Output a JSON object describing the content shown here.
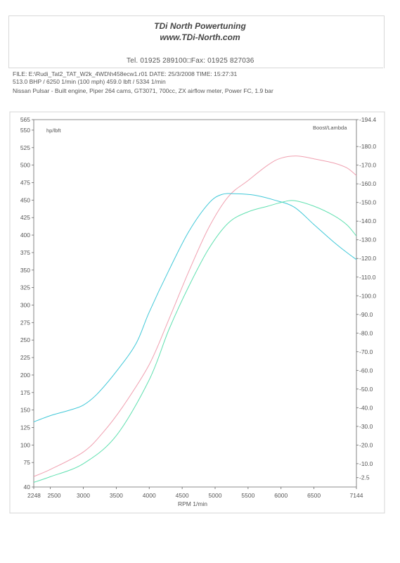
{
  "header": {
    "company": "TDi North Powertuning",
    "website": "www.TDi-North.com",
    "phone": "Tel. 01925 289100□Fax: 01925 827036"
  },
  "run_info": {
    "line1": "FILE: E:\\Rudi_Tat2_TAT_W2k_4WD\\h458ecw1.r01  DATE: 25/3/2008  TIME: 15:27:31",
    "line2": "513.0 BHP / 6250 1/min (100 mph)    459.0 lbft / 5334 1/min",
    "line3": "Nissan Pulsar - Built engine, Piper 264 cams, GT3071, 700cc, ZX airflow meter, Power FC, 1.9 bar"
  },
  "chart_data": {
    "type": "line",
    "xlabel": "RPM  1/min",
    "left_axis_label": "hp/lbft",
    "right_axis_label": "Boost/Lambda",
    "xlim": [
      2248,
      7144
    ],
    "x_ticks": [
      "2248",
      "2500",
      "3000",
      "3500",
      "4000",
      "4500",
      "5000",
      "5500",
      "6000",
      "6500",
      "7144"
    ],
    "ylim_left": [
      40,
      565
    ],
    "y_left_ticks": [
      "565",
      "550",
      "525",
      "500",
      "475",
      "450",
      "425",
      "400",
      "375",
      "350",
      "325",
      "300",
      "275",
      "250",
      "225",
      "200",
      "175",
      "150",
      "125",
      "100",
      "75",
      "40"
    ],
    "ylim_right": [
      -2.5,
      194.4
    ],
    "y_right_ticks": [
      "194.4",
      "180.0",
      "170.0",
      "160.0",
      "150.0",
      "140.0",
      "130.0",
      "120.0",
      "110.0",
      "100.0",
      "90.0",
      "80.0",
      "70.0",
      "60.0",
      "50.0",
      "40.0",
      "30.0",
      "20.0",
      "10.0",
      "2.5"
    ],
    "series": [
      {
        "axis": "left",
        "color": "#f0a0b0",
        "x": [
          2248,
          2500,
          3000,
          3300,
          3600,
          4000,
          4300,
          4600,
          4900,
          5200,
          5500,
          5800,
          6000,
          6250,
          6500,
          6800,
          7000,
          7144
        ],
        "y": [
          55,
          65,
          90,
          118,
          155,
          215,
          280,
          348,
          410,
          455,
          478,
          500,
          510,
          513,
          509,
          503,
          496,
          485
        ]
      },
      {
        "axis": "left",
        "color": "#40c8d8",
        "x": [
          2248,
          2500,
          2800,
          3000,
          3200,
          3500,
          3800,
          4000,
          4300,
          4600,
          4900,
          5100,
          5334,
          5600,
          5900,
          6200,
          6500,
          6800,
          7000,
          7144
        ],
        "y": [
          133,
          142,
          150,
          157,
          172,
          205,
          245,
          290,
          350,
          405,
          445,
          458,
          459,
          457,
          450,
          440,
          415,
          390,
          375,
          365
        ]
      },
      {
        "axis": "right",
        "color": "#60e0b0",
        "x": [
          2248,
          2500,
          3000,
          3500,
          4000,
          4300,
          4600,
          4900,
          5200,
          5500,
          5800,
          6000,
          6200,
          6500,
          6800,
          7000,
          7144
        ],
        "y": [
          0,
          3,
          10,
          25,
          55,
          82,
          105,
          125,
          139,
          145,
          148,
          150,
          151,
          148,
          143,
          138,
          132
        ]
      }
    ]
  }
}
